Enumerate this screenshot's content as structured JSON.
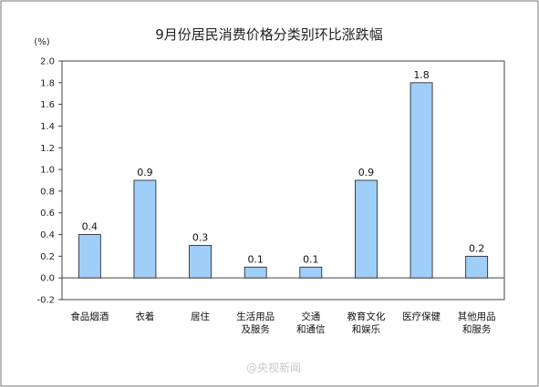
{
  "chart_data": {
    "type": "bar",
    "title": "9月份居民消费价格分类别环比涨跌幅",
    "unit_label": "(%)",
    "categories": [
      [
        "食品烟酒"
      ],
      [
        "衣着"
      ],
      [
        "居住"
      ],
      [
        "生活用品",
        "及服务"
      ],
      [
        "交通",
        "和通信"
      ],
      [
        "教育文化",
        "和娱乐"
      ],
      [
        "医疗保健"
      ],
      [
        "其他用品",
        "和服务"
      ]
    ],
    "values": [
      0.4,
      0.9,
      0.3,
      0.1,
      0.1,
      0.9,
      1.8,
      0.2
    ],
    "value_labels": [
      "0.4",
      "0.9",
      "0.3",
      "0.1",
      "0.1",
      "0.9",
      "1.8",
      "0.2"
    ],
    "ylim": [
      -0.2,
      2.0
    ],
    "yticks": [
      "-0.2",
      "0.0",
      "0.2",
      "0.4",
      "0.6",
      "0.8",
      "1.0",
      "1.2",
      "1.4",
      "1.6",
      "1.8",
      "2.0"
    ],
    "grid": false,
    "bar_color": "#9fcef8"
  },
  "watermark": "@央视新闻"
}
